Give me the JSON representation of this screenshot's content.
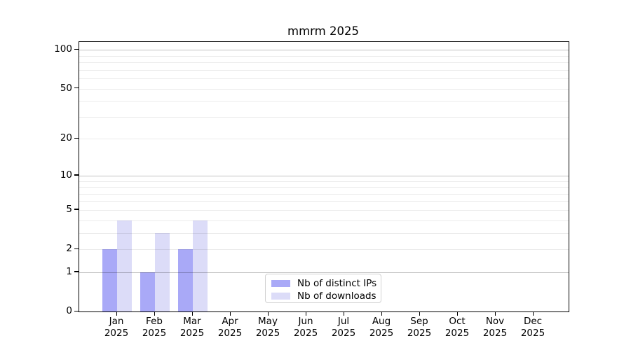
{
  "figure": {
    "title": "mmrm 2025"
  },
  "chart_data": {
    "type": "bar",
    "title": "mmrm 2025",
    "categories": [
      "Jan",
      "Feb",
      "Mar",
      "Apr",
      "May",
      "Jun",
      "Jul",
      "Aug",
      "Sep",
      "Oct",
      "Nov",
      "Dec"
    ],
    "x_year_label": "2025",
    "series": [
      {
        "name": "Nb of distinct IPs",
        "color": "#a9a9f7",
        "values": [
          2,
          1,
          2,
          0,
          0,
          0,
          0,
          0,
          0,
          0,
          0,
          0
        ]
      },
      {
        "name": "Nb of downloads",
        "color": "#dcdcf8",
        "values": [
          4,
          3,
          4,
          0,
          0,
          0,
          0,
          0,
          0,
          0,
          0,
          0
        ]
      }
    ],
    "y_scale": "log1p",
    "ylim": [
      0,
      115
    ],
    "y_tick_values": [
      0,
      1,
      2,
      5,
      10,
      20,
      50,
      100
    ],
    "y_tick_labels": [
      "0",
      "1",
      "2",
      "5",
      "10",
      "20",
      "50",
      "100"
    ],
    "grid": {
      "major_values": [
        1,
        10,
        100
      ],
      "minor_values": [
        2,
        3,
        4,
        5,
        6,
        7,
        8,
        9,
        20,
        30,
        40,
        50,
        60,
        70,
        80,
        90
      ],
      "major_color": "rgba(0,0,0,0.24)",
      "minor_color": "rgba(0,0,0,0.08)"
    },
    "legend_position": "lower center",
    "xlabel": "",
    "ylabel": ""
  }
}
